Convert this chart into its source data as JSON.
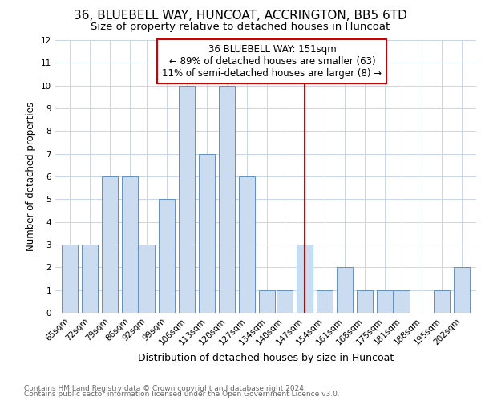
{
  "title1": "36, BLUEBELL WAY, HUNCOAT, ACCRINGTON, BB5 6TD",
  "title2": "Size of property relative to detached houses in Huncoat",
  "xlabel": "Distribution of detached houses by size in Huncoat",
  "ylabel": "Number of detached properties",
  "bin_labels": [
    "65sqm",
    "72sqm",
    "79sqm",
    "86sqm",
    "92sqm",
    "99sqm",
    "106sqm",
    "113sqm",
    "120sqm",
    "127sqm",
    "134sqm",
    "140sqm",
    "147sqm",
    "154sqm",
    "161sqm",
    "168sqm",
    "175sqm",
    "181sqm",
    "188sqm",
    "195sqm",
    "202sqm"
  ],
  "bin_centers": [
    65,
    72,
    79,
    86,
    92,
    99,
    106,
    113,
    120,
    127,
    134,
    140,
    147,
    154,
    161,
    168,
    175,
    181,
    188,
    195,
    202
  ],
  "counts": [
    3,
    3,
    6,
    6,
    3,
    5,
    10,
    7,
    10,
    6,
    1,
    1,
    3,
    1,
    2,
    1,
    1,
    1,
    0,
    1,
    2
  ],
  "bar_facecolor": "#ccdcf0",
  "bar_edgecolor": "#6090c0",
  "property_line_x": 147,
  "annotation_title": "36 BLUEBELL WAY: 151sqm",
  "annotation_line1": "← 89% of detached houses are smaller (63)",
  "annotation_line2": "11% of semi-detached houses are larger (8) →",
  "annotation_box_color": "#cc0000",
  "ylim": [
    0,
    12
  ],
  "yticks": [
    0,
    1,
    2,
    3,
    4,
    5,
    6,
    7,
    8,
    9,
    10,
    11,
    12
  ],
  "footer1": "Contains HM Land Registry data © Crown copyright and database right 2024.",
  "footer2": "Contains public sector information licensed under the Open Government Licence v3.0.",
  "background_color": "#ffffff",
  "grid_color": "#c8d4e8",
  "title1_fontsize": 11,
  "title2_fontsize": 9.5,
  "xlabel_fontsize": 9,
  "ylabel_fontsize": 8.5,
  "tick_fontsize": 7.5,
  "annotation_fontsize": 8.5,
  "footer_fontsize": 6.5,
  "bar_width": 5.5
}
